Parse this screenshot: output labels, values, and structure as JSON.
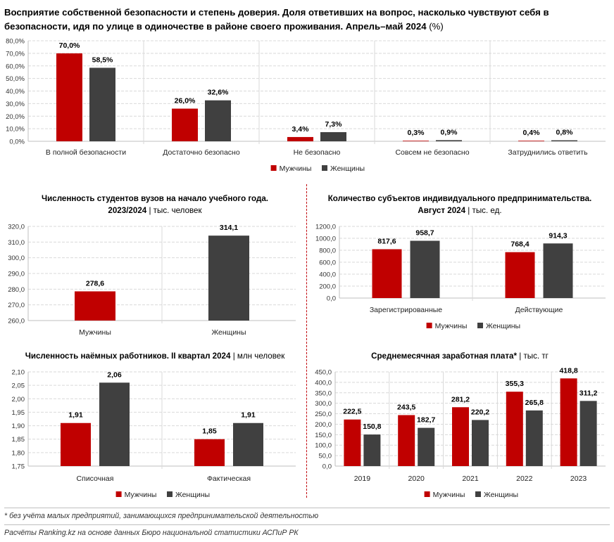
{
  "colors": {
    "men": "#c00000",
    "women": "#404040",
    "grid": "#d9d9d9",
    "divider": "#c0000a"
  },
  "header": {
    "title": "Восприятие собственной безопасности и степень доверия. Доля ответивших на вопрос, насколько чувствуют себя в безопасности, идя по улице в одиночестве в районе своего проживания. Апрель–май 2024",
    "unit": "(%)"
  },
  "charts": {
    "safety": {
      "title": "",
      "unit": ""
    },
    "students": {
      "title": "Численность студентов вузов на начало учебного года.",
      "title2": "2023/2024",
      "unit": "| тыс. человек"
    },
    "entrepreneurs": {
      "title": "Количество субъектов индивидуального предпринимательства.",
      "title2": "Август 2024",
      "unit": "| тыс. ед."
    },
    "workers": {
      "title": "Численность наёмных работников. II квартал 2024",
      "unit": "| млн человек"
    },
    "salary": {
      "title": "Среднемесячная заработная плата*",
      "unit": "| тыс. тг"
    }
  },
  "legend": {
    "men": "Мужчины",
    "women": "Женщины"
  },
  "footnotes": {
    "note": "* без учёта малых предприятий, занимающихся предпринимательской деятельностью",
    "source": "Расчёты Ranking.kz на основе данных Бюро национальной статистики АСПиР РК"
  },
  "chart_data": [
    {
      "id": "safety",
      "type": "bar",
      "categories": [
        "В полной безопасности",
        "Достаточно безопасно",
        "Не безопасно",
        "Совсем не безопасно",
        "Затруднились ответить"
      ],
      "series": [
        {
          "name": "Мужчины",
          "values": [
            70.0,
            26.0,
            3.4,
            0.3,
            0.4
          ],
          "labels": [
            "70,0%",
            "26,0%",
            "3,4%",
            "0,3%",
            "0,4%"
          ]
        },
        {
          "name": "Женщины",
          "values": [
            58.5,
            32.6,
            7.3,
            0.9,
            0.8
          ],
          "labels": [
            "58,5%",
            "32,6%",
            "7,3%",
            "0,9%",
            "0,8%"
          ]
        }
      ],
      "ylim": [
        0,
        80
      ],
      "yticks": [
        "0,0%",
        "10,0%",
        "20,0%",
        "30,0%",
        "40,0%",
        "50,0%",
        "60,0%",
        "70,0%",
        "80,0%"
      ],
      "grid": true,
      "legend": "bottom"
    },
    {
      "id": "students",
      "type": "bar",
      "categories": [
        "Мужчины",
        "Женщины"
      ],
      "values": [
        278.6,
        314.1
      ],
      "labels": [
        "278,6",
        "314,1"
      ],
      "ylim": [
        260,
        320
      ],
      "yticks": [
        "260,0",
        "270,0",
        "280,0",
        "290,0",
        "300,0",
        "310,0",
        "320,0"
      ],
      "grid": true
    },
    {
      "id": "entrepreneurs",
      "type": "bar",
      "categories": [
        "Зарегистрированные",
        "Действующие"
      ],
      "series": [
        {
          "name": "Мужчины",
          "values": [
            817.6,
            768.4
          ],
          "labels": [
            "817,6",
            "768,4"
          ]
        },
        {
          "name": "Женщины",
          "values": [
            958.7,
            914.3
          ],
          "labels": [
            "958,7",
            "914,3"
          ]
        }
      ],
      "ylim": [
        0,
        1200
      ],
      "yticks": [
        "0,0",
        "200,0",
        "400,0",
        "600,0",
        "800,0",
        "1000,0",
        "1200,0"
      ],
      "grid": true,
      "legend": "bottom"
    },
    {
      "id": "workers",
      "type": "bar",
      "categories": [
        "Списочная",
        "Фактическая"
      ],
      "series": [
        {
          "name": "Мужчины",
          "values": [
            1.91,
            1.85
          ],
          "labels": [
            "1,91",
            "1,85"
          ]
        },
        {
          "name": "Женщины",
          "values": [
            2.06,
            1.91
          ],
          "labels": [
            "2,06",
            "1,91"
          ]
        }
      ],
      "ylim": [
        1.75,
        2.1
      ],
      "yticks": [
        "1,75",
        "1,80",
        "1,85",
        "1,90",
        "1,95",
        "2,00",
        "2,05",
        "2,10"
      ],
      "grid": true,
      "legend": "bottom"
    },
    {
      "id": "salary",
      "type": "bar",
      "categories": [
        "2019",
        "2020",
        "2021",
        "2022",
        "2023"
      ],
      "series": [
        {
          "name": "Мужчины",
          "values": [
            222.5,
            243.5,
            281.2,
            355.3,
            418.8
          ],
          "labels": [
            "222,5",
            "243,5",
            "281,2",
            "355,3",
            "418,8"
          ]
        },
        {
          "name": "Женщины",
          "values": [
            150.8,
            182.7,
            220.2,
            265.8,
            311.2
          ],
          "labels": [
            "150,8",
            "182,7",
            "220,2",
            "265,8",
            "311,2"
          ]
        }
      ],
      "ylim": [
        0,
        450
      ],
      "yticks": [
        "0,0",
        "50,0",
        "100,0",
        "150,0",
        "200,0",
        "250,0",
        "300,0",
        "350,0",
        "400,0",
        "450,0"
      ],
      "grid": true,
      "legend": "bottom"
    }
  ]
}
